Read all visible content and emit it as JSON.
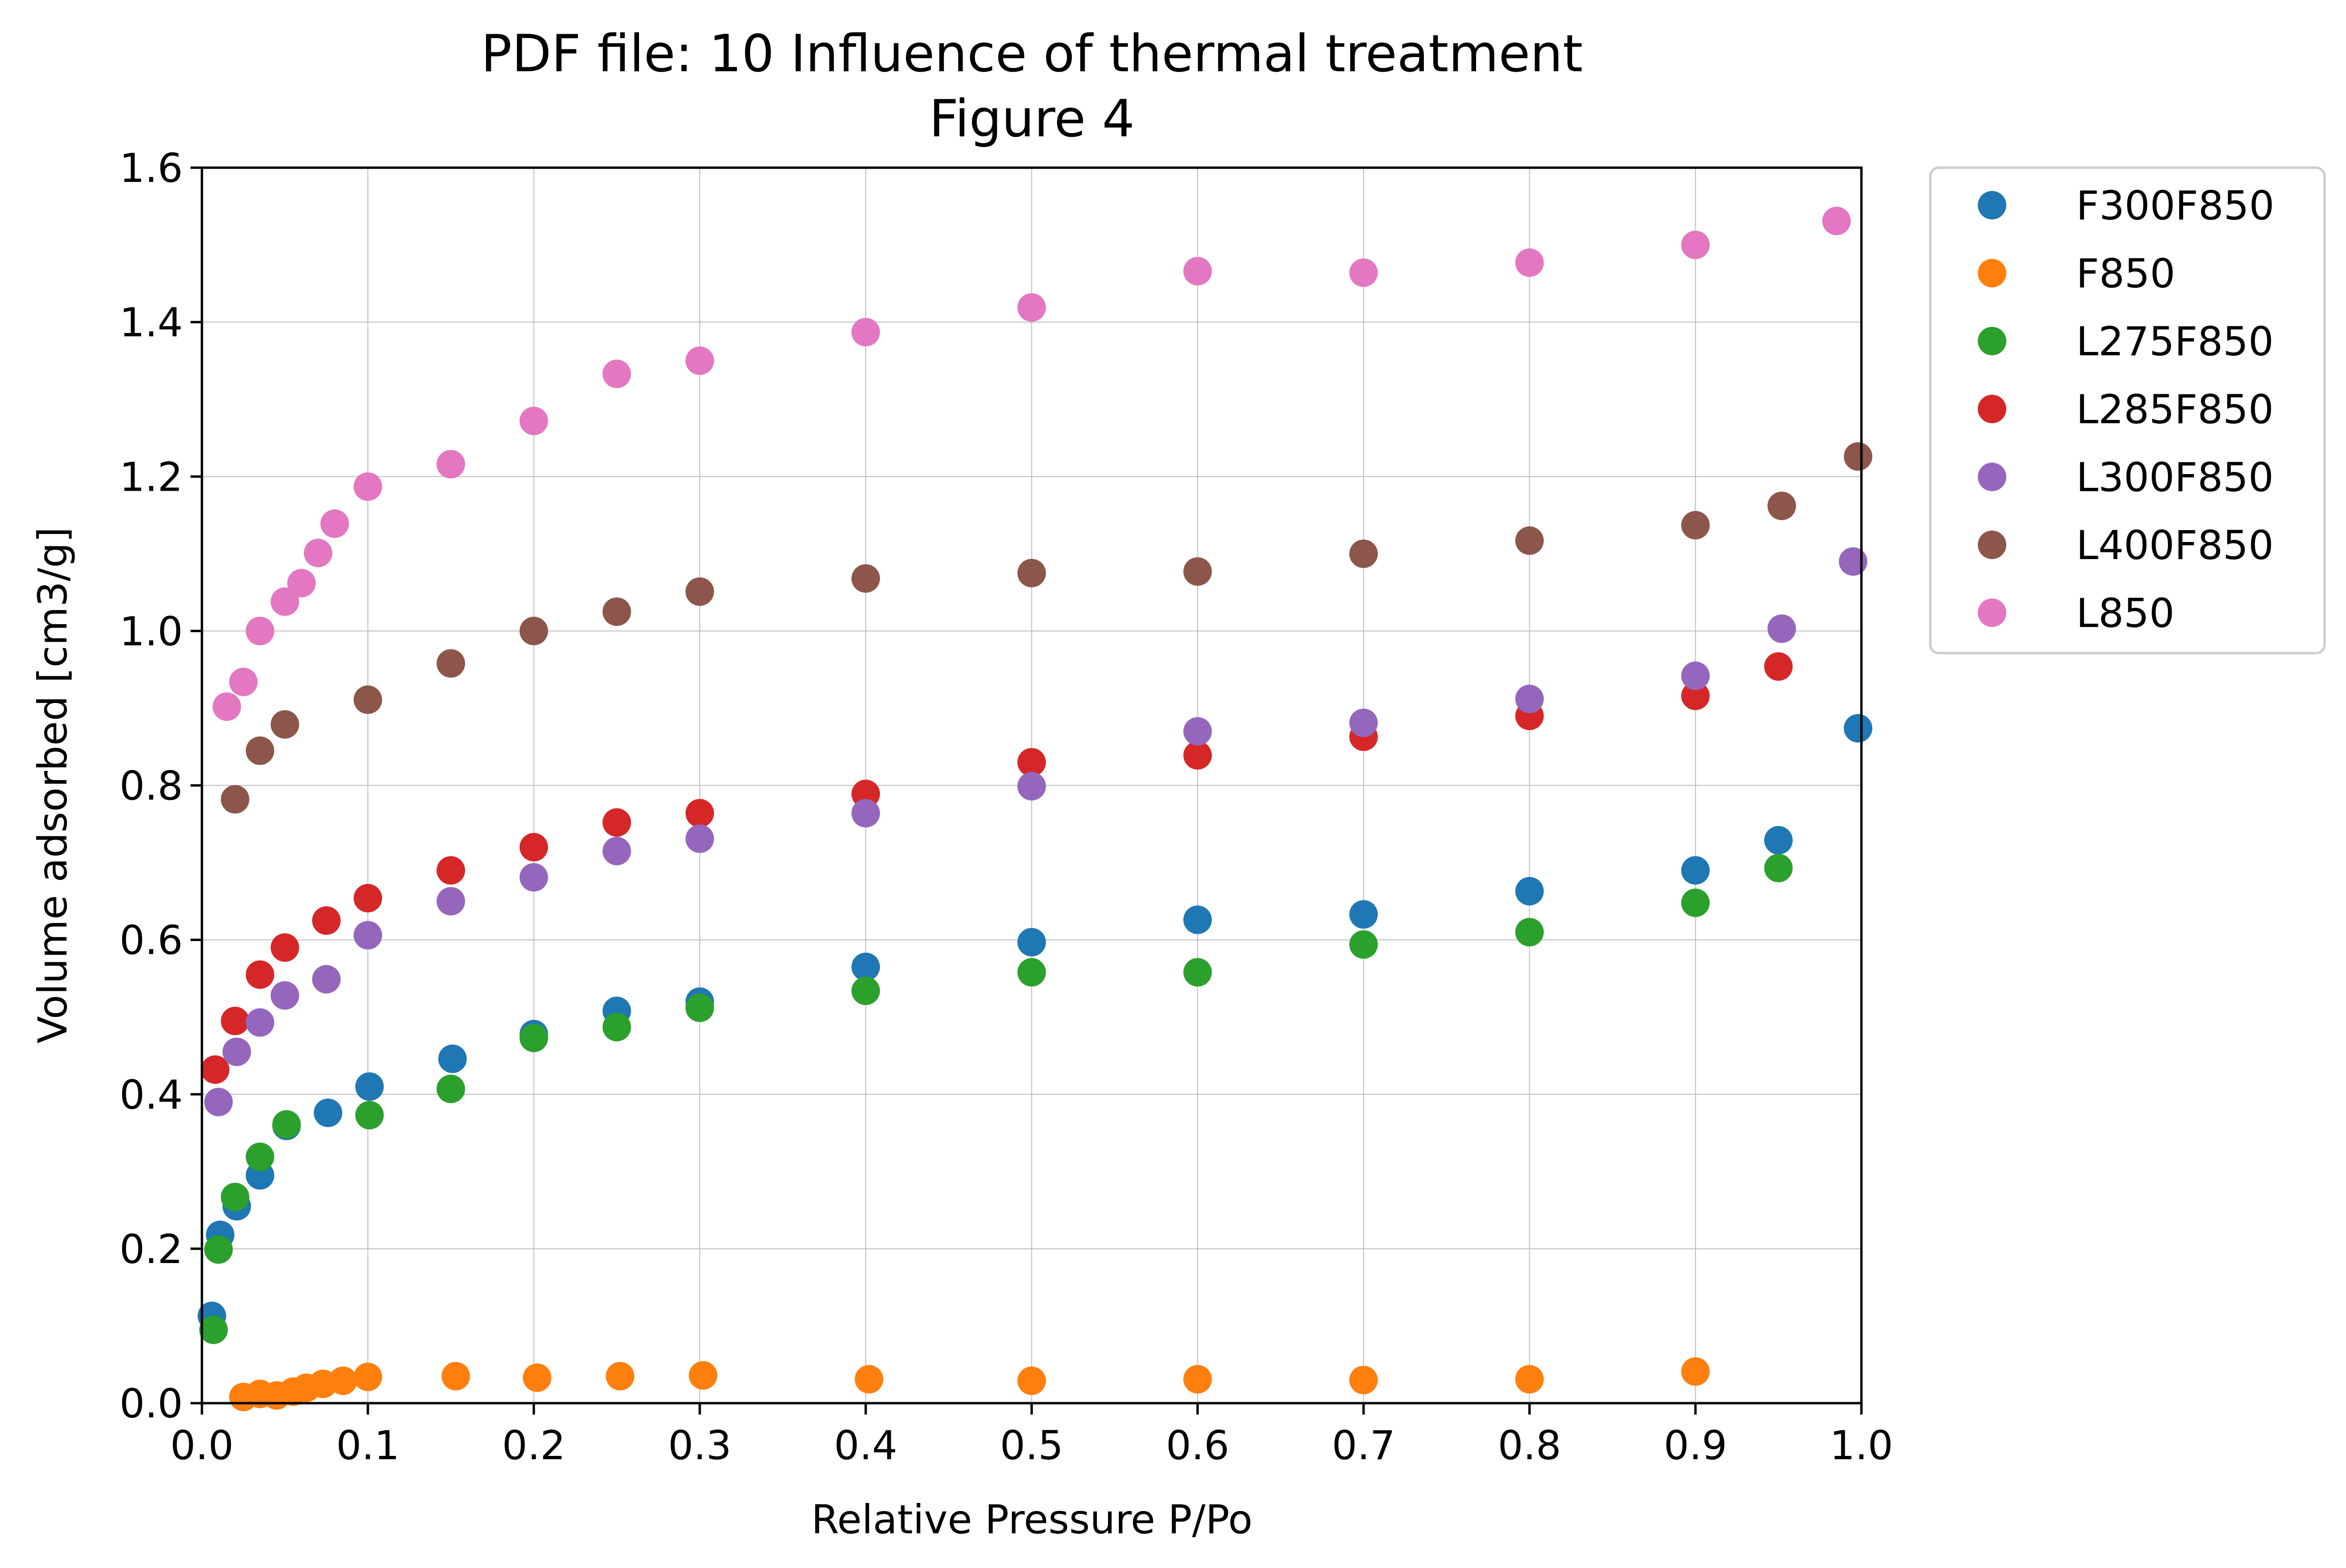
{
  "chart_data": {
    "type": "scatter",
    "title": "PDF file: 10 Influence of thermal treatment",
    "subtitle": "Figure 4",
    "xlabel": "Relative Pressure P/Po",
    "ylabel": "Volume adsorbed [cm3/g]",
    "xlim": [
      0.0,
      1.0
    ],
    "ylim": [
      0.0,
      1.6
    ],
    "xticks": [
      "0.0",
      "0.1",
      "0.2",
      "0.3",
      "0.4",
      "0.5",
      "0.6",
      "0.7",
      "0.8",
      "0.9",
      "1.0"
    ],
    "yticks": [
      "0.0",
      "0.2",
      "0.4",
      "0.6",
      "0.8",
      "1.0",
      "1.2",
      "1.4",
      "1.6"
    ],
    "grid": true,
    "legend_position": "outside-top-right",
    "series": [
      {
        "name": "F300F850",
        "color": "#1f77b4",
        "x": [
          0.006,
          0.011,
          0.021,
          0.035,
          0.051,
          0.076,
          0.101,
          0.151,
          0.2,
          0.25,
          0.3,
          0.4,
          0.5,
          0.6,
          0.7,
          0.8,
          0.9,
          0.95,
          0.998
        ],
        "y": [
          0.113,
          0.218,
          0.255,
          0.295,
          0.359,
          0.376,
          0.41,
          0.446,
          0.478,
          0.508,
          0.52,
          0.565,
          0.597,
          0.626,
          0.633,
          0.663,
          0.69,
          0.729,
          0.874
        ]
      },
      {
        "name": "F850",
        "color": "#ff7f0e",
        "x": [
          0.025,
          0.035,
          0.045,
          0.055,
          0.063,
          0.073,
          0.085,
          0.1,
          0.153,
          0.202,
          0.252,
          0.302,
          0.402,
          0.5,
          0.6,
          0.7,
          0.8,
          0.9
        ],
        "y": [
          0.008,
          0.012,
          0.01,
          0.015,
          0.02,
          0.025,
          0.029,
          0.034,
          0.035,
          0.033,
          0.035,
          0.036,
          0.031,
          0.029,
          0.031,
          0.03,
          0.031,
          0.041
        ]
      },
      {
        "name": "L275F850",
        "color": "#2ca02c",
        "x": [
          0.007,
          0.01,
          0.02,
          0.035,
          0.051,
          0.101,
          0.15,
          0.2,
          0.25,
          0.3,
          0.4,
          0.5,
          0.6,
          0.7,
          0.8,
          0.9,
          0.95
        ],
        "y": [
          0.095,
          0.199,
          0.267,
          0.319,
          0.361,
          0.373,
          0.407,
          0.473,
          0.487,
          0.512,
          0.534,
          0.558,
          0.558,
          0.594,
          0.61,
          0.648,
          0.693
        ]
      },
      {
        "name": "L285F850",
        "color": "#d62728",
        "x": [
          0.008,
          0.02,
          0.035,
          0.05,
          0.075,
          0.1,
          0.15,
          0.2,
          0.25,
          0.3,
          0.4,
          0.5,
          0.6,
          0.7,
          0.8,
          0.9,
          0.95
        ],
        "y": [
          0.432,
          0.495,
          0.555,
          0.59,
          0.625,
          0.654,
          0.69,
          0.72,
          0.752,
          0.764,
          0.789,
          0.83,
          0.839,
          0.863,
          0.89,
          0.916,
          0.954
        ]
      },
      {
        "name": "L300F850",
        "color": "#9467bd",
        "x": [
          0.01,
          0.021,
          0.035,
          0.05,
          0.075,
          0.1,
          0.15,
          0.2,
          0.25,
          0.3,
          0.4,
          0.5,
          0.6,
          0.7,
          0.8,
          0.9,
          0.952,
          0.995
        ],
        "y": [
          0.39,
          0.455,
          0.493,
          0.528,
          0.549,
          0.606,
          0.65,
          0.681,
          0.715,
          0.731,
          0.764,
          0.799,
          0.87,
          0.881,
          0.912,
          0.942,
          1.003,
          1.09
        ]
      },
      {
        "name": "L400F850",
        "color": "#8c564b",
        "x": [
          0.02,
          0.035,
          0.05,
          0.1,
          0.15,
          0.2,
          0.25,
          0.3,
          0.4,
          0.5,
          0.6,
          0.7,
          0.8,
          0.9,
          0.952,
          0.998
        ],
        "y": [
          0.782,
          0.845,
          0.879,
          0.911,
          0.958,
          1.0,
          1.025,
          1.051,
          1.068,
          1.075,
          1.077,
          1.1,
          1.117,
          1.137,
          1.162,
          1.226
        ]
      },
      {
        "name": "L850",
        "color": "#e377c2",
        "x": [
          0.015,
          0.025,
          0.035,
          0.05,
          0.06,
          0.07,
          0.08,
          0.1,
          0.15,
          0.2,
          0.25,
          0.3,
          0.4,
          0.5,
          0.6,
          0.7,
          0.8,
          0.9,
          0.985
        ],
        "y": [
          0.902,
          0.934,
          1.0,
          1.038,
          1.062,
          1.101,
          1.139,
          1.187,
          1.216,
          1.272,
          1.333,
          1.35,
          1.387,
          1.419,
          1.466,
          1.464,
          1.477,
          1.5,
          1.531
        ]
      }
    ]
  }
}
